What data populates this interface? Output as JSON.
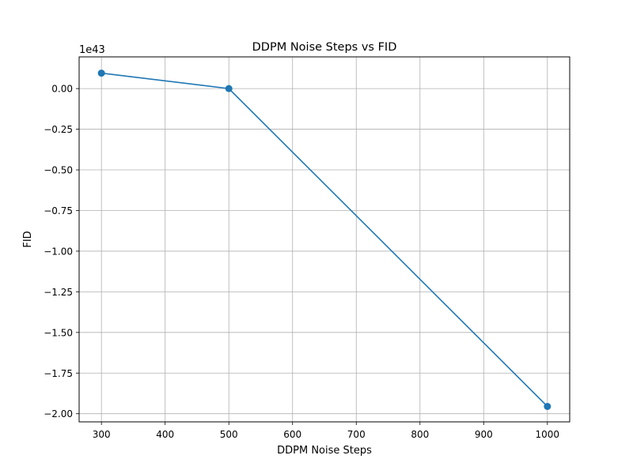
{
  "chart_data": {
    "type": "line",
    "title": "DDPM Noise Steps vs FID",
    "xlabel": "DDPM Noise Steps",
    "ylabel": "FID",
    "y_offset_label": "1e43",
    "x": [
      300,
      500,
      1000
    ],
    "series": [
      {
        "values": [
          0.095,
          0.0,
          -1.955
        ],
        "color": "#1f77b4",
        "marker": "circle"
      }
    ],
    "xlim": [
      265,
      1035
    ],
    "ylim": [
      -2.05,
      0.195
    ],
    "xticks": [
      300,
      400,
      500,
      600,
      700,
      800,
      900,
      1000
    ],
    "xtick_labels": [
      "300",
      "400",
      "500",
      "600",
      "700",
      "800",
      "900",
      "1000"
    ],
    "yticks": [
      0.0,
      -0.25,
      -0.5,
      -0.75,
      -1.0,
      -1.25,
      -1.5,
      -1.75,
      -2.0
    ],
    "ytick_labels": [
      "0.00",
      "−0.25",
      "−0.50",
      "−0.75",
      "−1.00",
      "−1.25",
      "−1.50",
      "−1.75",
      "−2.00"
    ],
    "grid": true,
    "colors": {
      "line": "#1f77b4",
      "grid": "#b0b0b0",
      "axes": "#000000"
    }
  }
}
